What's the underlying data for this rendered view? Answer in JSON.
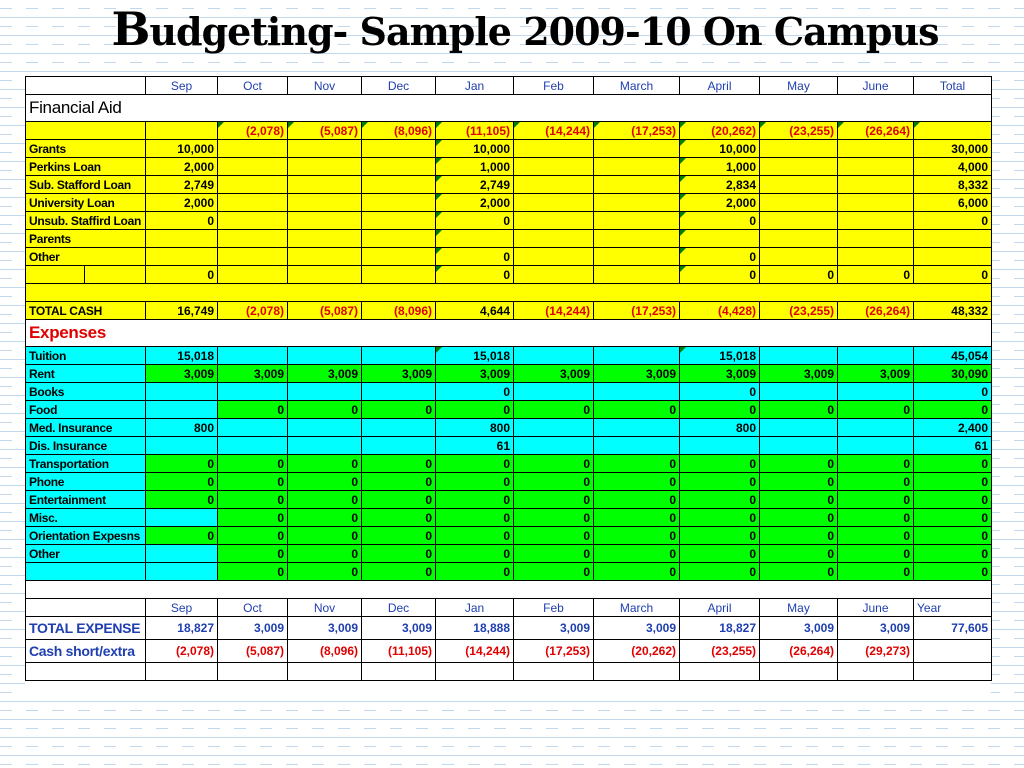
{
  "title_big": "B",
  "title_rest": "udgeting- Sample 2009-10 On Campus",
  "title_part1": "udgeting-",
  "title_part2": "Sample 2009-10 On Campus",
  "months": [
    "Sep",
    "Oct",
    "Nov",
    "Dec",
    "Jan",
    "Feb",
    "March",
    "April",
    "May",
    "June",
    "Total"
  ],
  "months_bottom": [
    "Sep",
    "Oct",
    "Nov",
    "Dec",
    "Jan",
    "Feb",
    "March",
    "April",
    "May",
    "June",
    "Year"
  ],
  "financial_aid_title": "Financial Aid",
  "expenses_title": "Expenses",
  "carryover": [
    "(2,078)",
    "(5,087)",
    "(8,096)",
    "(11,105)",
    "(14,244)",
    "(17,253)",
    "(20,262)",
    "(23,255)",
    "(26,264)",
    ""
  ],
  "aid_rows": [
    {
      "label": "Grants",
      "values": [
        "10,000",
        "",
        "",
        "",
        "10,000",
        "",
        "",
        "10,000",
        "",
        "",
        "30,000"
      ]
    },
    {
      "label": "Perkins Loan",
      "values": [
        "2,000",
        "",
        "",
        "",
        "1,000",
        "",
        "",
        "1,000",
        "",
        "",
        "4,000"
      ]
    },
    {
      "label": "Sub. Stafford Loan",
      "values": [
        "2,749",
        "",
        "",
        "",
        "2,749",
        "",
        "",
        "2,834",
        "",
        "",
        "8,332"
      ]
    },
    {
      "label": "University Loan",
      "values": [
        "2,000",
        "",
        "",
        "",
        "2,000",
        "",
        "",
        "2,000",
        "",
        "",
        "6,000"
      ]
    },
    {
      "label": "Unsub. Staffird Loan",
      "values": [
        "0",
        "",
        "",
        "",
        "0",
        "",
        "",
        "0",
        "",
        "",
        "0"
      ]
    },
    {
      "label": "Parents",
      "values": [
        "",
        "",
        "",
        "",
        "",
        "",
        "",
        "",
        "",
        "",
        ""
      ]
    },
    {
      "label": "Other",
      "values": [
        "",
        "",
        "",
        "",
        "0",
        "",
        "",
        "0",
        "",
        "",
        ""
      ]
    },
    {
      "label": "",
      "values": [
        "0",
        "",
        "",
        "",
        "0",
        "",
        "",
        "0",
        "0",
        "0",
        "0"
      ]
    }
  ],
  "total_cash": {
    "label": "TOTAL CASH",
    "values": [
      "16,749",
      "(2,078)",
      "(5,087)",
      "(8,096)",
      "4,644",
      "(14,244)",
      "(17,253)",
      "(4,428)",
      "(23,255)",
      "(26,264)",
      "48,332"
    ]
  },
  "expense_rows": [
    {
      "label": "Tuition",
      "values": [
        "15,018",
        "",
        "",
        "",
        "15,018",
        "",
        "",
        "15,018",
        "",
        "",
        "45,054"
      ]
    },
    {
      "label": "Rent",
      "values": [
        "3,009",
        "3,009",
        "3,009",
        "3,009",
        "3,009",
        "3,009",
        "3,009",
        "3,009",
        "3,009",
        "3,009",
        "30,090"
      ]
    },
    {
      "label": "Books",
      "values": [
        "",
        "",
        "",
        "",
        "0",
        "",
        "",
        "0",
        "",
        "",
        "0"
      ]
    },
    {
      "label": "Food",
      "values": [
        "",
        "0",
        "0",
        "0",
        "0",
        "0",
        "0",
        "0",
        "0",
        "0",
        "0"
      ]
    },
    {
      "label": "Med. Insurance",
      "values": [
        "800",
        "",
        "",
        "",
        "800",
        "",
        "",
        "800",
        "",
        "",
        "2,400"
      ]
    },
    {
      "label": "Dis. Insurance",
      "values": [
        "",
        "",
        "",
        "",
        "61",
        "",
        "",
        "",
        "",
        "",
        "61"
      ]
    },
    {
      "label": "Transportation",
      "values": [
        "0",
        "0",
        "0",
        "0",
        "0",
        "0",
        "0",
        "0",
        "0",
        "0",
        "0"
      ]
    },
    {
      "label": "Phone",
      "values": [
        "0",
        "0",
        "0",
        "0",
        "0",
        "0",
        "0",
        "0",
        "0",
        "0",
        "0"
      ]
    },
    {
      "label": "Entertainment",
      "values": [
        "0",
        "0",
        "0",
        "0",
        "0",
        "0",
        "0",
        "0",
        "0",
        "0",
        "0"
      ]
    },
    {
      "label": "Misc.",
      "values": [
        "",
        "0",
        "0",
        "0",
        "0",
        "0",
        "0",
        "0",
        "0",
        "0",
        "0"
      ]
    },
    {
      "label": "Orientation Expesns",
      "values": [
        "0",
        "0",
        "0",
        "0",
        "0",
        "0",
        "0",
        "0",
        "0",
        "0",
        "0"
      ]
    },
    {
      "label": "Other",
      "values": [
        "",
        "0",
        "0",
        "0",
        "0",
        "0",
        "0",
        "0",
        "0",
        "0",
        "0"
      ]
    },
    {
      "label": "",
      "values": [
        "",
        "0",
        "0",
        "0",
        "0",
        "0",
        "0",
        "0",
        "0",
        "0",
        "0"
      ]
    }
  ],
  "total_expense": {
    "label": "TOTAL EXPENSE",
    "values": [
      "18,827",
      "3,009",
      "3,009",
      "3,009",
      "18,888",
      "3,009",
      "3,009",
      "18,827",
      "3,009",
      "3,009",
      "77,605"
    ]
  },
  "cash_short": {
    "label": "Cash short/extra",
    "values": [
      "(2,078)",
      "(5,087)",
      "(8,096)",
      "(11,105)",
      "(14,244)",
      "(17,253)",
      "(20,262)",
      "(23,255)",
      "(26,264)",
      "(29,273)",
      ""
    ]
  },
  "colors": {
    "yellow": "#ffff00",
    "cyan": "#00ffff",
    "green": "#00ff00",
    "red": "#e00000",
    "blue": "#1f3fb0"
  }
}
